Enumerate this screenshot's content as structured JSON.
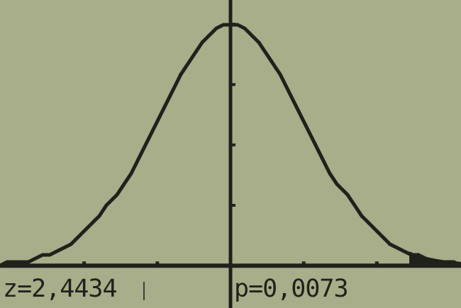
{
  "colors": {
    "screen_background": "#a8ad8a",
    "ink": "#1f221b"
  },
  "readouts": {
    "z_text": "z=2,4434",
    "p_text": "p=0,0073"
  },
  "chart_data": {
    "type": "line",
    "series": [
      {
        "curve": "standard normal density",
        "mean": 0,
        "sd": 1
      }
    ],
    "xlim": [
      -3.15,
      3.15
    ],
    "ylim": [
      -0.07,
      0.44
    ],
    "x_ticks": [
      -2,
      -1,
      1,
      2
    ],
    "y_ticks": [
      0.1,
      0.2,
      0.3,
      0.4
    ],
    "shaded_region": {
      "from": 2.4434,
      "to": 3.15
    },
    "grid": false,
    "axes": true
  }
}
